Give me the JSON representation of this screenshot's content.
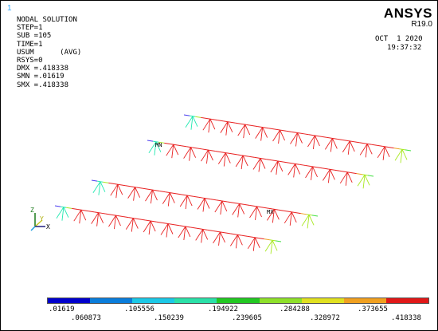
{
  "window_number": "1",
  "info_lines": [
    "NODAL SOLUTION",
    "",
    "STEP=1",
    "SUB =105",
    "TIME=1",
    "USUM      (AVG)",
    "RSYS=0",
    "DMX =.418338",
    "SMN =.01619",
    "SMX =.418338"
  ],
  "brand": {
    "name": "ANSYS",
    "version": "R19.0"
  },
  "date": "OCT  1 2020",
  "time": "19:37:32",
  "markers": {
    "min": "MN",
    "max": "MX"
  },
  "axes": {
    "z": "Z",
    "y": "Y",
    "x": "X"
  },
  "legend": {
    "colors": [
      "#0000cc",
      "#0a7ddb",
      "#1cc8e6",
      "#2be0a8",
      "#22c822",
      "#8ee02a",
      "#e0e020",
      "#f0a020",
      "#e01818"
    ],
    "upper_labels": [
      ".01619",
      ".105556",
      ".194922",
      ".284288",
      ".373655"
    ],
    "lower_labels": [
      ".060873",
      ".150239",
      ".239605",
      ".328972",
      ".418338"
    ]
  },
  "structure_colors": [
    "#4a3cf0",
    "#1aa8e8",
    "#20e8b0",
    "#40e040",
    "#a8e820",
    "#e8e020",
    "#f0a020",
    "#e82020"
  ]
}
